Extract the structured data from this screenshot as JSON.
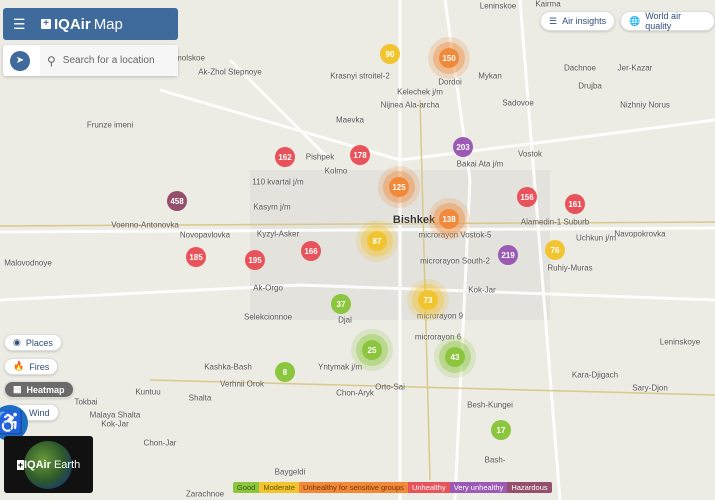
{
  "header": {
    "logo": "IQAir",
    "title": "Map",
    "menu_icon": "hamburger-icon"
  },
  "search": {
    "placeholder": "Search for a location"
  },
  "top_buttons": {
    "air_insights": "Air insights",
    "world_air_quality": "World air quality"
  },
  "layers": {
    "places": "Places",
    "fires": "Fires",
    "heatmap": "Heatmap",
    "wind": "Wind"
  },
  "earth": {
    "logo": "IQAir",
    "label": "Earth"
  },
  "colors": {
    "good": "#8cc63f",
    "moderate": "#f2c530",
    "usg": "#f08a3a",
    "unhealthy": "#e8525b",
    "very_unhealthy": "#9b5ab4",
    "hazardous": "#944f6c"
  },
  "legend": [
    {
      "label": "Good",
      "color": "#8cc63f",
      "text": "#3d5a14"
    },
    {
      "label": "Moderate",
      "color": "#f2c530",
      "text": "#6a5200"
    },
    {
      "label": "Unhealthy for sensitive groups",
      "color": "#f08a3a",
      "text": "#7a3400"
    },
    {
      "label": "Unhealthy",
      "color": "#e8525b",
      "text": "#fff"
    },
    {
      "label": "Very unhealthy",
      "color": "#9b5ab4",
      "text": "#fff"
    },
    {
      "label": "Hazardous",
      "color": "#944f6c",
      "text": "#fff"
    }
  ],
  "markers": [
    {
      "aqi": "90",
      "level": "moderate"
    },
    {
      "aqi": "150",
      "level": "usg"
    },
    {
      "aqi": "162",
      "level": "unhealthy"
    },
    {
      "aqi": "178",
      "level": "unhealthy"
    },
    {
      "aqi": "203",
      "level": "very_unhealthy"
    },
    {
      "aqi": "125",
      "level": "usg"
    },
    {
      "aqi": "458",
      "level": "hazardous"
    },
    {
      "aqi": "156",
      "level": "unhealthy"
    },
    {
      "aqi": "161",
      "level": "unhealthy"
    },
    {
      "aqi": "138",
      "level": "usg"
    },
    {
      "aqi": "87",
      "level": "moderate"
    },
    {
      "aqi": "166",
      "level": "unhealthy"
    },
    {
      "aqi": "185",
      "level": "unhealthy"
    },
    {
      "aqi": "195",
      "level": "unhealthy"
    },
    {
      "aqi": "219",
      "level": "very_unhealthy"
    },
    {
      "aqi": "76",
      "level": "moderate"
    },
    {
      "aqi": "73",
      "level": "moderate"
    },
    {
      "aqi": "37",
      "level": "good"
    },
    {
      "aqi": "25",
      "level": "good"
    },
    {
      "aqi": "43",
      "level": "good"
    },
    {
      "aqi": "8",
      "level": "good"
    },
    {
      "aqi": "17",
      "level": "good"
    }
  ],
  "places": [
    "Leninskoe",
    "Kairma",
    "molskoe",
    "Ak-Zhol Stepnoye",
    "Krasnyi strоitel-2",
    "Kelechek j/m",
    "Dordoi",
    "Mykan",
    "Dachnoe",
    "Jer-Kazar",
    "Drujba",
    "Nizhniy Norus",
    "Nijnea Ala-archa",
    "Sadovoe",
    "Frunze imeni",
    "Maevka",
    "Vostok",
    "Kolmo",
    "Pishpek",
    "Bakai Ata j/m",
    "110 kvartal j/m",
    "Voenno-Antonovka",
    "Kasym j/m",
    "Bishkek",
    "Alamedin-1 Suburb",
    "Novopavlovka",
    "Kyzyl-Asker",
    "microrayon Vostok-5",
    "Uchkun j/m",
    "Navopokrovka",
    "Ruhiy-Muras",
    "microrayon South-2",
    "Malovodnoye",
    "Ak-Orgo",
    "Selekcionnoe",
    "Djal",
    "microrayon 9",
    "Kok-Jar",
    "microrayon 6",
    "Leninskoye",
    "Yntymak j/m",
    "Kashka-Bash",
    "Verhnii Orok",
    "Orto-Sai",
    "Kara-Djigach",
    "Sary-Djon",
    "Kuntuu",
    "Chon-Aryk",
    "Tokbai",
    "Shalta",
    "Malaya Shalta",
    "Kok-Jar",
    "Chon-Jar",
    "Besh-Kungei",
    "Bash-",
    "Baygeldi",
    "Zarachnoe"
  ]
}
